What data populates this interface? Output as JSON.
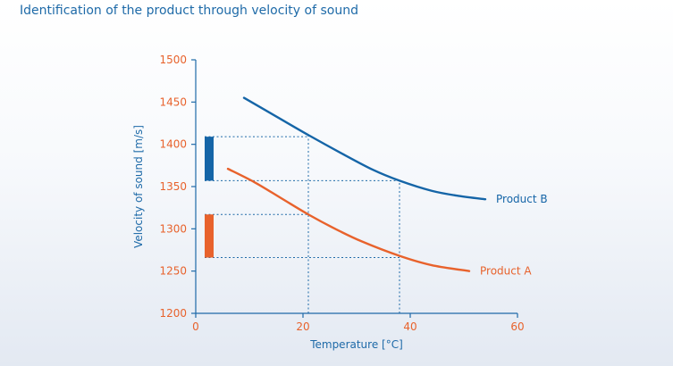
{
  "title": "Identification of the product through velocity of sound",
  "chart_data": {
    "type": "line",
    "title": "Identification of the product through velocity of sound",
    "xlabel": "Temperature [°C]",
    "ylabel": "Velocity of sound  [m/s]",
    "xlim": [
      0,
      60
    ],
    "ylim": [
      1200,
      1500
    ],
    "x_ticks": [
      0,
      20,
      40,
      60
    ],
    "y_ticks": [
      1200,
      1250,
      1300,
      1350,
      1400,
      1450,
      1500
    ],
    "grid": false,
    "colors": {
      "product_b": "#1565a7",
      "product_a": "#e8622c",
      "axis": "#1e6aa8",
      "tick_labels": "#e8622c",
      "guides": "#1e6aa8"
    },
    "series": [
      {
        "name": "Product B",
        "x": [
          9,
          15,
          21,
          27,
          33,
          38,
          44,
          49,
          54
        ],
        "y": [
          1455,
          1433,
          1411,
          1390,
          1370,
          1357,
          1345,
          1339,
          1335
        ]
      },
      {
        "name": "Product A",
        "x": [
          6,
          11,
          16,
          21,
          26,
          31,
          38,
          44,
          51
        ],
        "y": [
          1371,
          1355,
          1336,
          1317,
          1300,
          1285,
          1268,
          1257,
          1250
        ]
      }
    ],
    "reference_lines": [
      {
        "type": "vertical",
        "x": 21,
        "y_top": 1414
      },
      {
        "type": "vertical",
        "x": 38,
        "y_top": 1357
      },
      {
        "type": "horizontal",
        "y": 1409,
        "x_end": 21
      },
      {
        "type": "horizontal",
        "y": 1357,
        "x_end": 38
      },
      {
        "type": "horizontal",
        "y": 1317,
        "x_end": 21
      },
      {
        "type": "horizontal",
        "y": 1266,
        "x_end": 38
      }
    ],
    "ranges": [
      {
        "series": "Product B",
        "y_min": 1357,
        "y_max": 1409
      },
      {
        "series": "Product A",
        "y_min": 1266,
        "y_max": 1317
      }
    ]
  }
}
